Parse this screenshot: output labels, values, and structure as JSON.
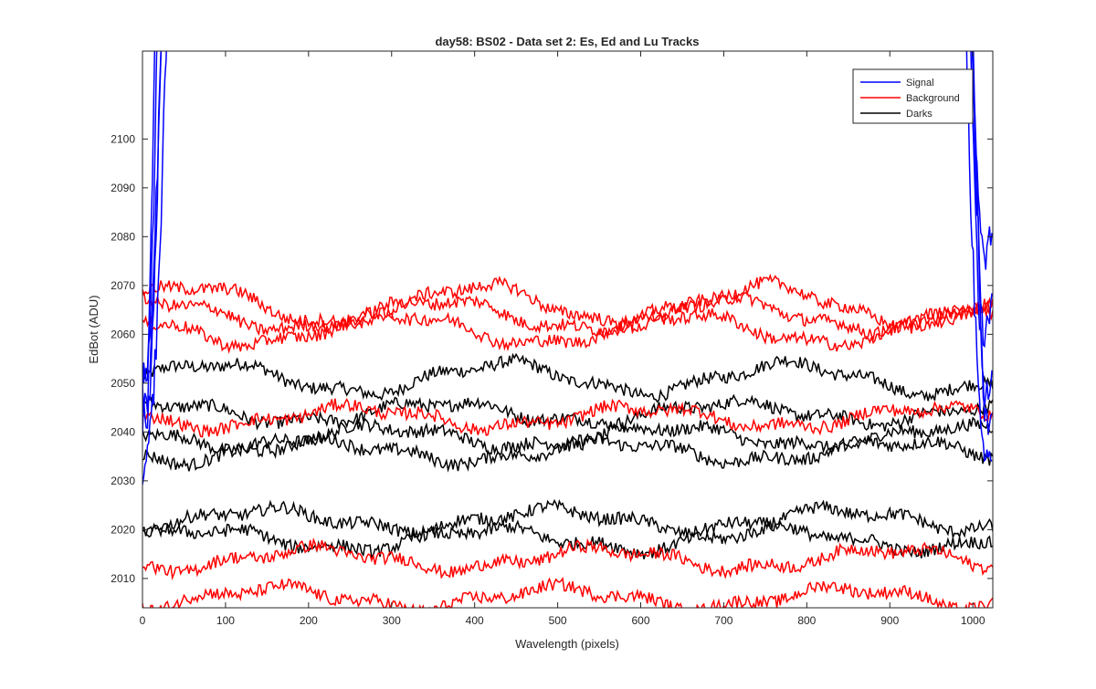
{
  "chart_data": {
    "type": "line",
    "title": "day58: BS02 - Data set 2: Es, Ed and Lu Tracks",
    "xlabel": "Wavelength (pixels)",
    "ylabel": "EdBot (ADU)",
    "xlim": [
      0,
      1024
    ],
    "ylim": [
      2004,
      2118
    ],
    "xticks": [
      0,
      100,
      200,
      300,
      400,
      500,
      600,
      700,
      800,
      900,
      1000
    ],
    "yticks": [
      2010,
      2020,
      2030,
      2040,
      2050,
      2060,
      2070,
      2080,
      2090,
      2100
    ],
    "grid": false,
    "legend_location": "top-right",
    "series": [
      {
        "name": "Signal",
        "color": "#0000ff",
        "note": "traces rise off-scale near 0-100 px and 950-1024 px; middle region off-scale above axis"
      },
      {
        "name": "Background",
        "color": "#ff0000",
        "tracks": [
          {
            "level": 2066,
            "amplitude": 4
          },
          {
            "level": 2064,
            "amplitude": 3
          },
          {
            "level": 2061,
            "amplitude": 3
          },
          {
            "level": 2043,
            "amplitude": 2
          },
          {
            "level": 2014,
            "amplitude": 2
          },
          {
            "level": 2006,
            "amplitude": 2
          }
        ]
      },
      {
        "name": "Darks",
        "color": "#000000",
        "tracks": [
          {
            "level": 2051,
            "amplitude": 3
          },
          {
            "level": 2044,
            "amplitude": 2
          },
          {
            "level": 2039,
            "amplitude": 2
          },
          {
            "level": 2036,
            "amplitude": 2
          },
          {
            "level": 2022,
            "amplitude": 2
          },
          {
            "level": 2018,
            "amplitude": 2
          }
        ]
      }
    ]
  }
}
